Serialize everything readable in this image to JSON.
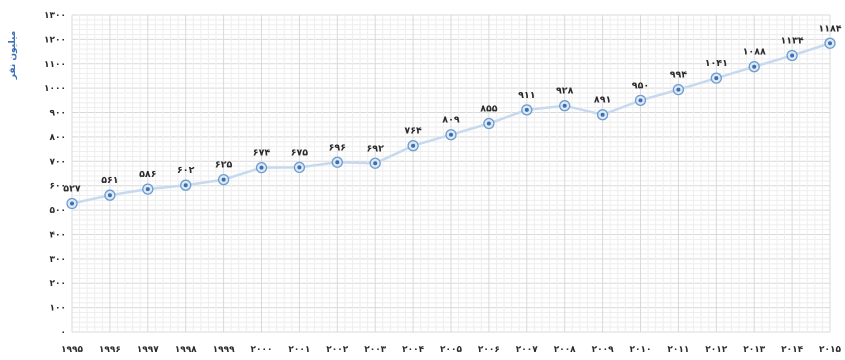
{
  "chart_data": {
    "type": "line",
    "title": "",
    "xlabel": "",
    "ylabel": "میلیون نفر",
    "ylim": [
      0,
      1300
    ],
    "y_ticks": [
      0,
      100,
      200,
      300,
      400,
      500,
      600,
      700,
      800,
      900,
      1000,
      1100,
      1200,
      1300
    ],
    "y_tick_labels": [
      "٠",
      "١٠٠",
      "٢٠٠",
      "٣٠٠",
      "۴٠٠",
      "۵٠٠",
      "۶٠٠",
      "٧٠٠",
      "٨٠٠",
      "٩٠٠",
      "١٠٠٠",
      "١١٠٠",
      "١٢٠٠",
      "١٣٠٠"
    ],
    "categories": [
      "١٩٩۵",
      "١٩٩۶",
      "١٩٩٧",
      "١٩٩٨",
      "١٩٩٩",
      "٢٠٠٠",
      "٢٠٠١",
      "٢٠٠٢",
      "٢٠٠٣",
      "٢٠٠۴",
      "٢٠٠۵",
      "٢٠٠۶",
      "٢٠٠٧",
      "٢٠٠٨",
      "٢٠٠٩",
      "٢٠١٠",
      "٢٠١١",
      "٢٠١٢",
      "٢٠١٣",
      "٢٠١۴",
      "٢٠١۵"
    ],
    "series": [
      {
        "values": [
          527,
          561,
          586,
          602,
          625,
          674,
          675,
          696,
          692,
          764,
          809,
          855,
          911,
          928,
          891,
          950,
          994,
          1041,
          1088,
          1134,
          1184
        ],
        "labels": [
          "۵٢٧",
          "۵۶١",
          "۵٨۶",
          "۶٠٢",
          "۶٢۵",
          "۶٧۴",
          "۶٧۵",
          "۶٩۶",
          "۶٩٢",
          "٧۶۴",
          "٨٠٩",
          "٨۵۵",
          "٩١١",
          "٩٢٨",
          "٨٩١",
          "٩۵٠",
          "٩٩۴",
          "١٠۴١",
          "١٠٨٨",
          "١١٣۴",
          "١١٨۴"
        ]
      }
    ],
    "grid": true,
    "legend": "none",
    "colors": {
      "line": "#c6d9ee",
      "marker_fill": "#dce9f7",
      "marker_stroke": "#6f9ccd",
      "marker_center": "#3d6fae",
      "grid_major": "#d9d9d9",
      "grid_minor": "#eeeeee"
    }
  }
}
